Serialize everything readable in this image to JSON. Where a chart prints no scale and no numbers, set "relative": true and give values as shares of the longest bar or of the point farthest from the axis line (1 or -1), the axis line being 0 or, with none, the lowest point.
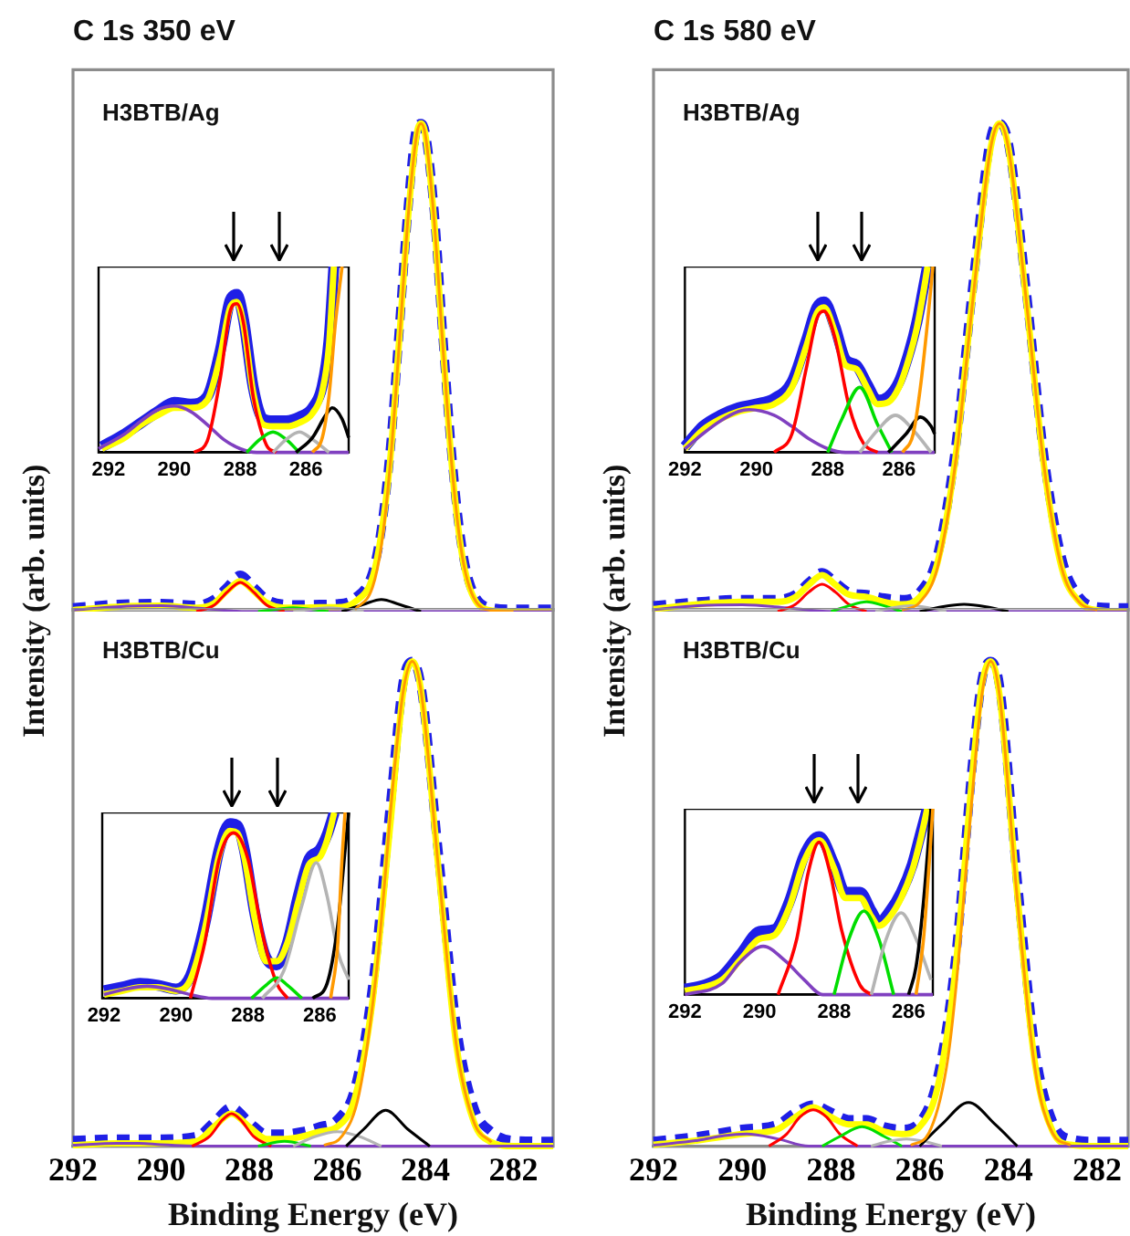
{
  "chart_data": [
    {
      "type": "line",
      "title": "C 1s 350 eV",
      "subtitle": "H3BTB/Ag",
      "ylabel": "Intensity (arb. units)",
      "relative": true,
      "xlim": [
        292,
        281.1
      ],
      "tick_labels": false,
      "marker": "none",
      "series": [
        {
          "color": "#1f1fe6",
          "line_style": "dashed",
          "x": [
            292,
            291,
            290,
            289.2,
            288.8,
            288.5,
            288.2,
            287.9,
            287.6,
            287.2,
            286.8,
            286.4,
            286,
            285.6,
            285.2,
            285,
            284.8,
            284.6,
            284.4,
            284.2,
            284.1,
            284,
            283.8,
            283.6,
            283.4,
            283.2,
            283,
            282.6,
            282,
            281.1
          ],
          "values": [
            0.008,
            0.015,
            0.017,
            0.013,
            0.025,
            0.05,
            0.075,
            0.05,
            0.025,
            0.015,
            0.014,
            0.015,
            0.016,
            0.028,
            0.08,
            0.17,
            0.33,
            0.57,
            0.82,
            0.99,
            1,
            0.98,
            0.82,
            0.56,
            0.32,
            0.15,
            0.06,
            0.01,
            0.005,
            0.005
          ]
        },
        {
          "color": "#ffff00",
          "x": [
            292,
            291,
            290,
            289.2,
            288.8,
            288.5,
            288.2,
            287.9,
            287.6,
            287.2,
            286.8,
            286.4,
            286,
            285.6,
            285.2,
            285,
            284.8,
            284.6,
            284.4,
            284.2,
            284.1,
            284,
            283.8,
            283.6,
            283.4,
            283.2,
            283,
            282.6,
            282,
            281.1
          ],
          "values": [
            0.003,
            0.01,
            0.012,
            0.008,
            0.017,
            0.043,
            0.062,
            0.042,
            0.018,
            0.008,
            0.008,
            0.009,
            0.009,
            0.02,
            0.07,
            0.16,
            0.31,
            0.55,
            0.8,
            0.976,
            1,
            0.976,
            0.8,
            0.54,
            0.3,
            0.135,
            0.05,
            0.004,
            0,
            0
          ]
        },
        {
          "color": "#8040c0",
          "x": [
            292,
            291,
            290,
            289,
            288,
            281.1
          ],
          "values": [
            0.003,
            0.01,
            0.012,
            0.006,
            0,
            0
          ]
        },
        {
          "color": "#ff0000",
          "x": [
            289.2,
            288.8,
            288.5,
            288.2,
            287.9,
            287.6,
            287.2
          ],
          "values": [
            0,
            0.013,
            0.04,
            0.06,
            0.04,
            0.013,
            0
          ]
        },
        {
          "color": "#00dd00",
          "x": [
            287.8,
            287,
            286.2
          ],
          "values": [
            0,
            0.008,
            0
          ]
        },
        {
          "color": "#b4b4b4",
          "x": [
            287,
            286.2,
            285.4
          ],
          "values": [
            0,
            0.008,
            0
          ]
        },
        {
          "color": "#000000",
          "x": [
            285.9,
            285.4,
            285,
            284.6,
            284.1
          ],
          "values": [
            0,
            0.015,
            0.025,
            0.015,
            0
          ]
        },
        {
          "color": "#ff9900",
          "x": [
            285.6,
            285.2,
            285,
            284.8,
            284.6,
            284.4,
            284.2,
            284.1,
            284,
            283.8,
            283.6,
            283.4,
            283.2,
            283,
            282.6,
            282
          ],
          "values": [
            0.004,
            0.05,
            0.135,
            0.3,
            0.54,
            0.8,
            0.976,
            1,
            0.976,
            0.8,
            0.54,
            0.3,
            0.135,
            0.05,
            0.004,
            0
          ]
        }
      ]
    },
    {
      "type": "line",
      "relative": true,
      "xlim": [
        292.3,
        284.7
      ],
      "xticks": [
        292,
        290,
        288,
        286
      ],
      "tick_labels": "x",
      "marker": "none",
      "series": [
        {
          "color": "#1f1fe6",
          "x": [
            292.2,
            291.5,
            291,
            290.5,
            290,
            289.5,
            289,
            288.6,
            288.3,
            288.1,
            287.9,
            287.6,
            287.3,
            287,
            286.6,
            286.2,
            285.8,
            285.5,
            285.3,
            285.15
          ],
          "values": [
            0.03,
            0.1,
            0.16,
            0.22,
            0.27,
            0.26,
            0.3,
            0.55,
            0.82,
            0.85,
            0.72,
            0.35,
            0.18,
            0.17,
            0.17,
            0.19,
            0.24,
            0.36,
            0.6,
            1
          ]
        },
        {
          "color": "#ffff00",
          "x": [
            292.2,
            291.5,
            291,
            290.5,
            290,
            289.5,
            289,
            288.6,
            288.3,
            288.1,
            287.9,
            287.6,
            287.3,
            287,
            286.6,
            286.2,
            285.8,
            285.5,
            285.3,
            285.15
          ],
          "values": [
            0.02,
            0.08,
            0.15,
            0.2,
            0.24,
            0.24,
            0.28,
            0.52,
            0.78,
            0.81,
            0.69,
            0.32,
            0.15,
            0.14,
            0.14,
            0.16,
            0.21,
            0.33,
            0.57,
            1
          ]
        },
        {
          "color": "#8040c0",
          "x": [
            292.3,
            291.5,
            291,
            290.5,
            290,
            289.5,
            289,
            288.5,
            288,
            287.5,
            284.7
          ],
          "values": [
            0.02,
            0.1,
            0.17,
            0.23,
            0.25,
            0.22,
            0.15,
            0.07,
            0.02,
            0,
            0
          ]
        },
        {
          "color": "#ff0000",
          "x": [
            289.4,
            289,
            288.6,
            288.3,
            288.1,
            287.9,
            287.6,
            287.2,
            286.9
          ],
          "values": [
            0,
            0.06,
            0.4,
            0.76,
            0.8,
            0.7,
            0.3,
            0.04,
            0
          ]
        },
        {
          "color": "#00dd00",
          "x": [
            287.8,
            287.4,
            287,
            286.6,
            286.2
          ],
          "values": [
            0,
            0.07,
            0.11,
            0.07,
            0
          ]
        },
        {
          "color": "#b4b4b4",
          "x": [
            287,
            286.6,
            286.2,
            285.8,
            285.3
          ],
          "values": [
            0,
            0.07,
            0.11,
            0.07,
            0
          ]
        },
        {
          "color": "#000000",
          "x": [
            286.3,
            285.8,
            285.4,
            285.2,
            284.9,
            284.7
          ],
          "values": [
            0,
            0.08,
            0.2,
            0.24,
            0.18,
            0.08
          ]
        },
        {
          "color": "#ff9900",
          "x": [
            285.8,
            285.5,
            285.3,
            285.1,
            284.9
          ],
          "values": [
            0,
            0.08,
            0.3,
            0.7,
            1
          ]
        }
      ]
    },
    {
      "type": "line",
      "title": "C 1s 580 eV",
      "subtitle": "H3BTB/Ag",
      "ylabel": "Intensity (arb. units)",
      "relative": true,
      "xlim": [
        292,
        281.3
      ],
      "tick_labels": false,
      "marker": "none",
      "series": [
        {
          "color": "#1f1fe6",
          "line_style": "dashed",
          "x": [
            292,
            291,
            290,
            289.2,
            288.8,
            288.5,
            288.2,
            287.9,
            287.6,
            287.2,
            286.8,
            286.4,
            286,
            285.6,
            285.2,
            284.8,
            284.4,
            284.2,
            284,
            283.6,
            283.2,
            282.8,
            282.4,
            282,
            281.3
          ],
          "values": [
            0.012,
            0.02,
            0.025,
            0.025,
            0.035,
            0.06,
            0.08,
            0.06,
            0.04,
            0.035,
            0.028,
            0.025,
            0.04,
            0.115,
            0.33,
            0.67,
            0.97,
            1,
            0.96,
            0.66,
            0.32,
            0.11,
            0.03,
            0.01,
            0.008
          ]
        },
        {
          "color": "#ffff00",
          "x": [
            292,
            291,
            290,
            289.2,
            288.8,
            288.5,
            288.2,
            287.9,
            287.6,
            287.2,
            286.8,
            286.4,
            286,
            285.6,
            285.2,
            284.8,
            284.4,
            284.2,
            284,
            283.6,
            283.2,
            282.8,
            282.4,
            282,
            281.3
          ],
          "values": [
            0.005,
            0.015,
            0.02,
            0.02,
            0.03,
            0.055,
            0.075,
            0.055,
            0.035,
            0.03,
            0.02,
            0.015,
            0.03,
            0.1,
            0.31,
            0.65,
            0.95,
            1,
            0.95,
            0.64,
            0.3,
            0.09,
            0.02,
            0.003,
            0
          ]
        },
        {
          "color": "#8040c0",
          "x": [
            292,
            291,
            290,
            289,
            288,
            281.3
          ],
          "values": [
            0.004,
            0.012,
            0.014,
            0.008,
            0,
            0
          ]
        },
        {
          "color": "#ff0000",
          "x": [
            289.2,
            288.8,
            288.5,
            288.2,
            287.9,
            287.6,
            287.2
          ],
          "values": [
            0,
            0.015,
            0.04,
            0.056,
            0.04,
            0.015,
            0
          ]
        },
        {
          "color": "#00dd00",
          "x": [
            288,
            287.6,
            287.2,
            286.8,
            286.4
          ],
          "values": [
            0,
            0.012,
            0.02,
            0.012,
            0
          ]
        },
        {
          "color": "#b4b4b4",
          "x": [
            287,
            286.6,
            286.2,
            285.8,
            285.4
          ],
          "values": [
            0,
            0.008,
            0.012,
            0.008,
            0
          ]
        },
        {
          "color": "#000000",
          "x": [
            286,
            285.5,
            285,
            284.5,
            284
          ],
          "values": [
            0,
            0.01,
            0.015,
            0.01,
            0
          ]
        },
        {
          "color": "#ff9900",
          "x": [
            286.4,
            286,
            285.6,
            285.2,
            284.8,
            284.4,
            284.2,
            284,
            283.6,
            283.2,
            282.8,
            282.4,
            282
          ],
          "values": [
            0.003,
            0.019,
            0.09,
            0.3,
            0.64,
            0.95,
            1,
            0.95,
            0.64,
            0.3,
            0.09,
            0.019,
            0.003
          ]
        }
      ]
    },
    {
      "type": "line",
      "relative": true,
      "xlim": [
        292,
        285
      ],
      "xticks": [
        292,
        290,
        288,
        286
      ],
      "tick_labels": "x",
      "marker": "none",
      "series": [
        {
          "color": "#1f1fe6",
          "x": [
            292,
            291.5,
            291,
            290.5,
            290,
            289.5,
            289,
            288.6,
            288.3,
            288.1,
            287.8,
            287.5,
            287.2,
            286.9,
            286.6,
            286.3,
            286,
            285.7,
            285.5,
            285.3,
            285.2
          ],
          "values": [
            0.03,
            0.14,
            0.2,
            0.24,
            0.26,
            0.29,
            0.38,
            0.6,
            0.78,
            0.81,
            0.68,
            0.5,
            0.47,
            0.37,
            0.28,
            0.3,
            0.38,
            0.55,
            0.7,
            0.9,
            1
          ]
        },
        {
          "color": "#ffff00",
          "x": [
            292,
            291.5,
            291,
            290.5,
            290,
            289.5,
            289,
            288.6,
            288.3,
            288.1,
            287.8,
            287.5,
            287.2,
            286.9,
            286.6,
            286.3,
            286,
            285.7,
            285.5,
            285.3,
            285.2
          ],
          "values": [
            0.02,
            0.12,
            0.18,
            0.22,
            0.24,
            0.26,
            0.35,
            0.57,
            0.75,
            0.78,
            0.65,
            0.47,
            0.45,
            0.35,
            0.26,
            0.27,
            0.35,
            0.52,
            0.67,
            0.88,
            1
          ]
        },
        {
          "color": "#8040c0",
          "x": [
            292,
            291.5,
            291,
            290.5,
            290.2,
            289.5,
            289,
            288.5,
            288,
            287.5,
            285
          ],
          "values": [
            0.02,
            0.1,
            0.17,
            0.22,
            0.23,
            0.2,
            0.14,
            0.07,
            0.02,
            0,
            0
          ]
        },
        {
          "color": "#ff0000",
          "x": [
            289.5,
            289,
            288.6,
            288.3,
            288.1,
            287.8,
            287.4,
            287,
            286.6
          ],
          "values": [
            0,
            0.1,
            0.45,
            0.72,
            0.76,
            0.62,
            0.25,
            0.05,
            0
          ]
        },
        {
          "color": "#00dd00",
          "x": [
            288,
            287.6,
            287.1,
            286.6,
            286.2
          ],
          "values": [
            0,
            0.18,
            0.35,
            0.15,
            0
          ]
        },
        {
          "color": "#b4b4b4",
          "x": [
            287.1,
            286.6,
            286.1,
            285.6,
            285.1
          ],
          "values": [
            0,
            0.12,
            0.2,
            0.12,
            0
          ]
        },
        {
          "color": "#000000",
          "x": [
            286.3,
            285.8,
            285.4,
            285.1,
            285
          ],
          "values": [
            0,
            0.1,
            0.19,
            0.14,
            0.1
          ]
        },
        {
          "color": "#ff9900",
          "x": [
            285.9,
            285.6,
            285.4,
            285.2,
            285.05
          ],
          "values": [
            0,
            0.1,
            0.35,
            0.7,
            1
          ]
        }
      ]
    },
    {
      "type": "line",
      "subtitle": "H3BTB/Cu",
      "xlabel": "Binding Energy (eV)",
      "relative": true,
      "xlim": [
        292,
        281.1
      ],
      "xticks": [
        292,
        290,
        288,
        286,
        284,
        282
      ],
      "tick_labels": "x",
      "marker": "none",
      "series": [
        {
          "color": "#1f1fe6",
          "line_style": "dashed",
          "x": [
            292,
            291,
            290,
            289.2,
            288.8,
            288.4,
            288,
            287.6,
            287.2,
            286.8,
            286.4,
            286,
            285.6,
            285.2,
            284.8,
            284.5,
            284.3,
            284.1,
            283.7,
            283.3,
            282.9,
            282.5,
            282,
            281.1
          ],
          "values": [
            0.012,
            0.015,
            0.015,
            0.02,
            0.05,
            0.08,
            0.05,
            0.025,
            0.025,
            0.03,
            0.04,
            0.055,
            0.12,
            0.33,
            0.7,
            0.96,
            1,
            0.95,
            0.6,
            0.25,
            0.08,
            0.03,
            0.012,
            0.01
          ]
        },
        {
          "color": "#ffff00",
          "x": [
            292,
            291,
            290,
            289.2,
            288.8,
            288.4,
            288,
            287.6,
            287.2,
            286.8,
            286.4,
            286,
            285.6,
            285.2,
            284.8,
            284.5,
            284.3,
            284.1,
            283.7,
            283.3,
            282.9,
            282.5,
            282,
            281.1
          ],
          "values": [
            0.002,
            0.006,
            0.006,
            0.01,
            0.04,
            0.067,
            0.04,
            0.015,
            0.015,
            0.02,
            0.03,
            0.04,
            0.1,
            0.3,
            0.66,
            0.94,
            1,
            0.94,
            0.57,
            0.21,
            0.05,
            0.008,
            0,
            0
          ]
        },
        {
          "color": "#8040c0",
          "x": [
            292,
            291,
            290.5,
            290,
            289,
            281.1
          ],
          "values": [
            0.002,
            0.006,
            0.006,
            0.003,
            0,
            0
          ]
        },
        {
          "color": "#ff0000",
          "x": [
            289.3,
            288.9,
            288.6,
            288.4,
            288.2,
            287.9,
            287.5
          ],
          "values": [
            0,
            0.02,
            0.055,
            0.067,
            0.055,
            0.02,
            0
          ]
        },
        {
          "color": "#00dd00",
          "x": [
            287.8,
            287.2,
            286.6
          ],
          "values": [
            0,
            0.01,
            0
          ]
        },
        {
          "color": "#b4b4b4",
          "x": [
            287,
            286.5,
            286,
            285.5,
            285
          ],
          "values": [
            0,
            0.02,
            0.03,
            0.02,
            0
          ]
        },
        {
          "color": "#000000",
          "x": [
            285.8,
            285.4,
            284.9,
            284.4,
            283.9
          ],
          "values": [
            0,
            0.035,
            0.074,
            0.035,
            0
          ]
        },
        {
          "color": "#ff9900",
          "x": [
            286.3,
            285.9,
            285.5,
            285.1,
            284.7,
            284.5,
            284.3,
            284.1,
            283.7,
            283.3,
            282.9,
            282.5
          ],
          "values": [
            0.002,
            0.02,
            0.11,
            0.37,
            0.78,
            0.94,
            1,
            0.94,
            0.57,
            0.21,
            0.05,
            0.008
          ]
        }
      ]
    },
    {
      "type": "line",
      "relative": true,
      "xlim": [
        292.05,
        285.2
      ],
      "xticks": [
        292,
        290,
        288,
        286
      ],
      "tick_labels": "x",
      "marker": "none",
      "series": [
        {
          "color": "#1f1fe6",
          "x": [
            292,
            291.5,
            291,
            290.5,
            290,
            289.6,
            289.2,
            288.8,
            288.5,
            288.3,
            288.1,
            287.8,
            287.5,
            287.2,
            286.9,
            286.6,
            286.3,
            286,
            285.8,
            285.6
          ],
          "values": [
            0.04,
            0.06,
            0.08,
            0.07,
            0.05,
            0.12,
            0.4,
            0.8,
            0.94,
            0.93,
            0.8,
            0.45,
            0.22,
            0.18,
            0.3,
            0.55,
            0.75,
            0.8,
            0.88,
            1
          ]
        },
        {
          "color": "#ffff00",
          "x": [
            292,
            291.5,
            291,
            290.5,
            290,
            289.6,
            289.2,
            288.8,
            288.5,
            288.3,
            288.1,
            287.8,
            287.5,
            287.2,
            286.9,
            286.6,
            286.3,
            286,
            285.8,
            285.6
          ],
          "values": [
            0.02,
            0.04,
            0.06,
            0.06,
            0.04,
            0.1,
            0.37,
            0.77,
            0.9,
            0.89,
            0.76,
            0.42,
            0.2,
            0.2,
            0.3,
            0.52,
            0.72,
            0.76,
            0.85,
            1
          ]
        },
        {
          "color": "#8040c0",
          "x": [
            292,
            291.4,
            290.8,
            290.2,
            289.6,
            289,
            285.2
          ],
          "values": [
            0.02,
            0.05,
            0.065,
            0.05,
            0.02,
            0,
            0
          ]
        },
        {
          "color": "#ff0000",
          "x": [
            289.6,
            289.2,
            288.8,
            288.4,
            288,
            287.6,
            287.2,
            286.9
          ],
          "values": [
            0,
            0.3,
            0.75,
            0.89,
            0.75,
            0.35,
            0.08,
            0
          ]
        },
        {
          "color": "#00dd00",
          "x": [
            287.9,
            287.5,
            287.2,
            286.9,
            286.5
          ],
          "values": [
            0,
            0.07,
            0.11,
            0.07,
            0
          ]
        },
        {
          "color": "#b4b4b4",
          "x": [
            287.6,
            287,
            286.5,
            286.1,
            285.8,
            285.5,
            285.2
          ],
          "values": [
            0,
            0.15,
            0.5,
            0.73,
            0.55,
            0.25,
            0.1
          ]
        },
        {
          "color": "#000000",
          "x": [
            286.2,
            285.8,
            285.5,
            285.3,
            285.2
          ],
          "values": [
            0,
            0.08,
            0.4,
            0.8,
            1
          ]
        },
        {
          "color": "#ff9900",
          "x": [
            285.7,
            285.5,
            285.4,
            285.3
          ],
          "values": [
            0,
            0.3,
            0.7,
            1
          ]
        }
      ]
    },
    {
      "type": "line",
      "subtitle": "H3BTB/Cu",
      "xlabel": "Binding Energy (eV)",
      "relative": true,
      "xlim": [
        292,
        281.3
      ],
      "xticks": [
        292,
        290,
        288,
        286,
        284,
        282
      ],
      "tick_labels": "x",
      "marker": "none",
      "series": [
        {
          "color": "#1f1fe6",
          "line_style": "dashed",
          "x": [
            292,
            291,
            290,
            289.2,
            288.8,
            288.4,
            288,
            287.6,
            287.2,
            286.8,
            286.4,
            286,
            285.6,
            285.2,
            284.8,
            284.6,
            284.4,
            284.2,
            283.8,
            283.4,
            283,
            282.6,
            282,
            281.3
          ],
          "values": [
            0.01,
            0.02,
            0.035,
            0.045,
            0.07,
            0.085,
            0.07,
            0.055,
            0.055,
            0.04,
            0.035,
            0.05,
            0.14,
            0.38,
            0.8,
            0.96,
            1,
            0.95,
            0.55,
            0.2,
            0.05,
            0.015,
            0.01,
            0.01
          ]
        },
        {
          "color": "#ffff00",
          "x": [
            292,
            291,
            290,
            289.2,
            288.8,
            288.4,
            288,
            287.6,
            287.2,
            286.8,
            286.4,
            286,
            285.6,
            285.2,
            284.8,
            284.6,
            284.4,
            284.2,
            283.8,
            283.4,
            283,
            282.6,
            282,
            281.3
          ],
          "values": [
            0.003,
            0.012,
            0.025,
            0.035,
            0.06,
            0.08,
            0.06,
            0.045,
            0.045,
            0.03,
            0.025,
            0.04,
            0.12,
            0.36,
            0.78,
            0.95,
            1,
            0.93,
            0.52,
            0.17,
            0.03,
            0.003,
            0,
            0
          ]
        },
        {
          "color": "#8040c0",
          "x": [
            292,
            291,
            290.4,
            289.9,
            289.2,
            288.5,
            281.3
          ],
          "values": [
            0.002,
            0.012,
            0.022,
            0.025,
            0.015,
            0,
            0
          ]
        },
        {
          "color": "#ff0000",
          "x": [
            289.4,
            289,
            288.7,
            288.4,
            288.1,
            287.8,
            287.4
          ],
          "values": [
            0,
            0.025,
            0.06,
            0.075,
            0.06,
            0.025,
            0
          ]
        },
        {
          "color": "#00dd00",
          "x": [
            288.2,
            287.8,
            287.3,
            286.8,
            286.4
          ],
          "values": [
            0,
            0.02,
            0.04,
            0.02,
            0
          ]
        },
        {
          "color": "#b4b4b4",
          "x": [
            287.1,
            286.7,
            286.3,
            285.9,
            285.5
          ],
          "values": [
            0,
            0.01,
            0.015,
            0.01,
            0
          ]
        },
        {
          "color": "#000000",
          "x": [
            286,
            285.5,
            284.9,
            284.3,
            283.8
          ],
          "values": [
            0,
            0.045,
            0.09,
            0.045,
            0
          ]
        },
        {
          "color": "#ff9900",
          "x": [
            286.2,
            285.8,
            285.4,
            285.2,
            284.8,
            284.6,
            284.4,
            284.2,
            283.8,
            283.4,
            283,
            282.6
          ],
          "values": [
            0.002,
            0.026,
            0.16,
            0.31,
            0.74,
            0.93,
            1,
            0.93,
            0.51,
            0.16,
            0.026,
            0.002
          ]
        }
      ]
    },
    {
      "type": "line",
      "relative": true,
      "xlim": [
        292,
        285.35
      ],
      "xticks": [
        292,
        290,
        288,
        286
      ],
      "tick_labels": "x",
      "marker": "none",
      "series": [
        {
          "color": "#1f1fe6",
          "x": [
            292,
            291.5,
            291,
            290.5,
            290,
            289.6,
            289.2,
            288.8,
            288.4,
            288,
            287.7,
            287.3,
            287,
            286.8,
            286.5,
            286.2,
            285.9,
            285.7,
            285.5
          ],
          "values": [
            0.03,
            0.05,
            0.1,
            0.22,
            0.34,
            0.35,
            0.5,
            0.75,
            0.85,
            0.7,
            0.55,
            0.55,
            0.45,
            0.39,
            0.45,
            0.55,
            0.7,
            0.85,
            1
          ]
        },
        {
          "color": "#ffff00",
          "x": [
            292,
            291.5,
            291,
            290.5,
            290,
            289.6,
            289.2,
            288.8,
            288.4,
            288,
            287.7,
            287.3,
            287,
            286.8,
            286.5,
            286.2,
            285.9,
            285.7,
            285.5
          ],
          "values": [
            0.02,
            0.04,
            0.08,
            0.19,
            0.3,
            0.32,
            0.47,
            0.72,
            0.83,
            0.68,
            0.52,
            0.52,
            0.42,
            0.37,
            0.42,
            0.52,
            0.67,
            0.82,
            1
          ]
        },
        {
          "color": "#8040c0",
          "x": [
            292,
            291,
            290.5,
            289.9,
            289.3,
            288.8,
            288.3,
            285.35
          ],
          "values": [
            0,
            0.06,
            0.18,
            0.26,
            0.18,
            0.08,
            0,
            0
          ]
        },
        {
          "color": "#ff0000",
          "x": [
            289.5,
            289,
            288.7,
            288.4,
            288.1,
            287.8,
            287.3,
            287
          ],
          "values": [
            0,
            0.3,
            0.65,
            0.82,
            0.65,
            0.35,
            0.05,
            0
          ]
        },
        {
          "color": "#00dd00",
          "x": [
            288,
            287.6,
            287.2,
            286.8,
            286.4
          ],
          "values": [
            0,
            0.3,
            0.45,
            0.3,
            0
          ]
        },
        {
          "color": "#b4b4b4",
          "x": [
            287,
            286.6,
            286.2,
            285.8,
            285.4
          ],
          "values": [
            0,
            0.3,
            0.44,
            0.3,
            0.08
          ]
        },
        {
          "color": "#000000",
          "x": [
            286,
            285.8,
            285.6,
            285.4
          ],
          "values": [
            0,
            0.15,
            0.5,
            1
          ]
        },
        {
          "color": "#ff9900",
          "x": [
            285.8,
            285.6,
            285.45,
            285.35
          ],
          "values": [
            0,
            0.3,
            0.7,
            1
          ]
        }
      ]
    }
  ]
}
